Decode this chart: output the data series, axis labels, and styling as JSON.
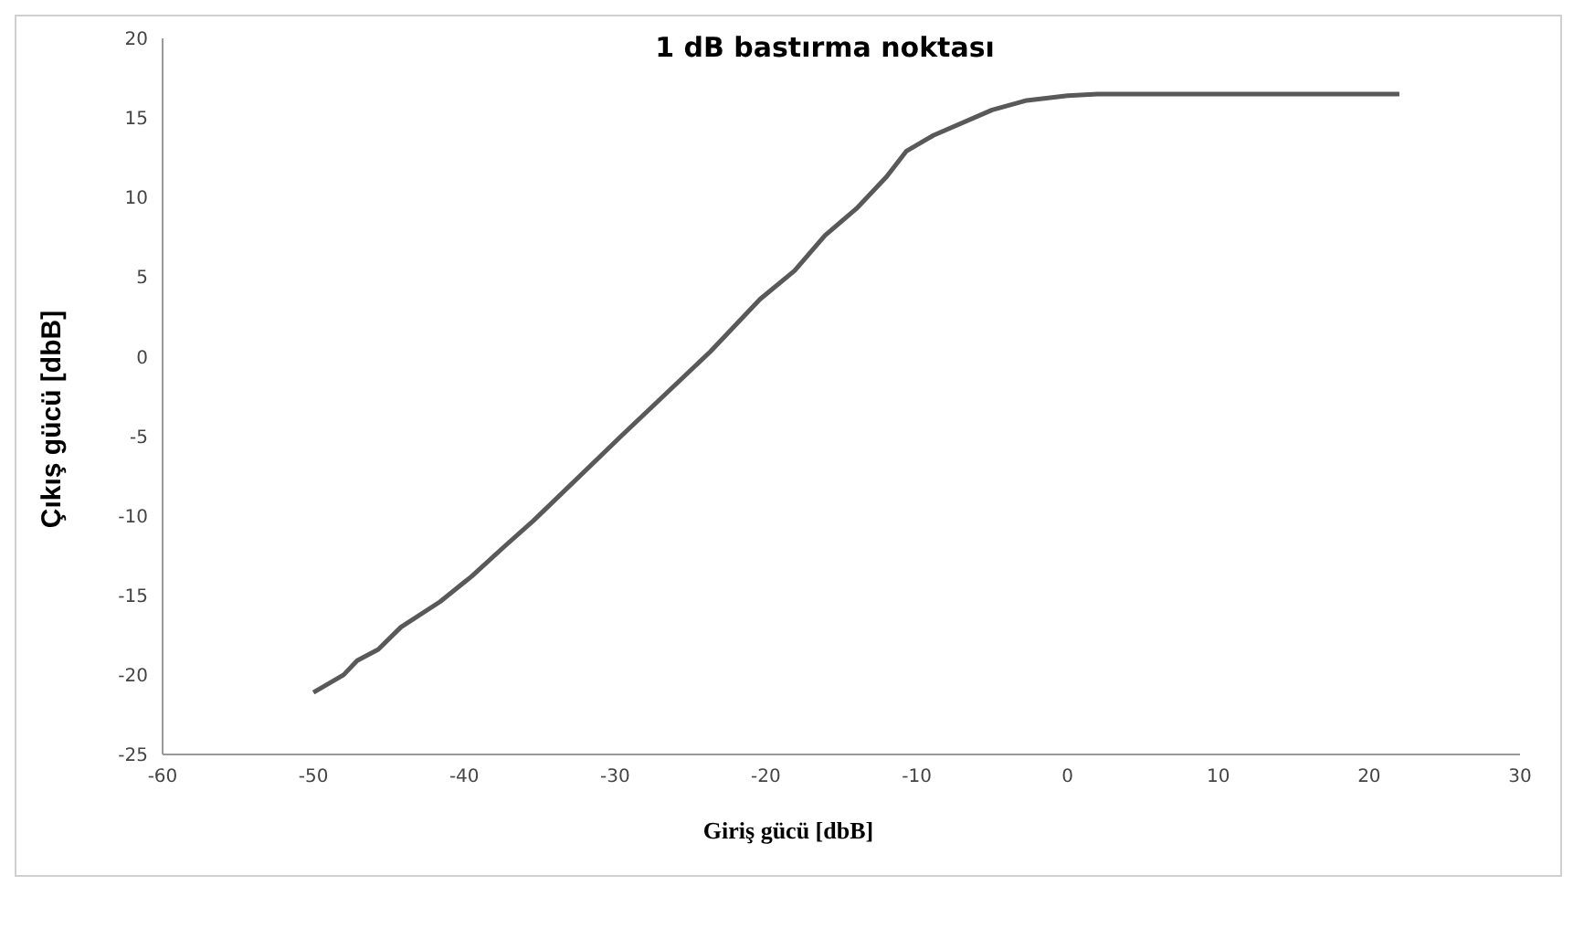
{
  "chart_data": {
    "type": "line",
    "title": "1 dB bastırma noktası",
    "xlabel": "Giriş gücü [dbB]",
    "ylabel": "Çıkış gücü [dbB]",
    "x": [
      -50,
      -48,
      -47.1,
      -45.7,
      -44.2,
      -41.6,
      -39.5,
      -37.3,
      -35.4,
      -29.6,
      -23.7,
      -20.4,
      -18.1,
      -16.1,
      -14,
      -12,
      -10.7,
      -8.9,
      -5,
      -2.7,
      0,
      2,
      22
    ],
    "series": [
      {
        "color": "#595959",
        "values": [
          -21.1,
          -20,
          -19.1,
          -18.4,
          -17,
          -15.4,
          -13.8,
          -11.9,
          -10.3,
          -5,
          0.3,
          3.6,
          5.4,
          7.6,
          9.3,
          11.3,
          12.9,
          13.9,
          15.5,
          16.1,
          16.4,
          16.5,
          16.5
        ]
      }
    ],
    "xlim": [
      -60,
      30
    ],
    "xticks": [
      -60,
      -50,
      -40,
      -30,
      -20,
      -10,
      0,
      10,
      20,
      30
    ],
    "ylim": [
      -25,
      20
    ],
    "yticks": [
      -25,
      -20,
      -15,
      -10,
      -5,
      0,
      5,
      10,
      15,
      20
    ],
    "grid": false,
    "legend": false,
    "marker": "none",
    "line_style": "solid"
  }
}
